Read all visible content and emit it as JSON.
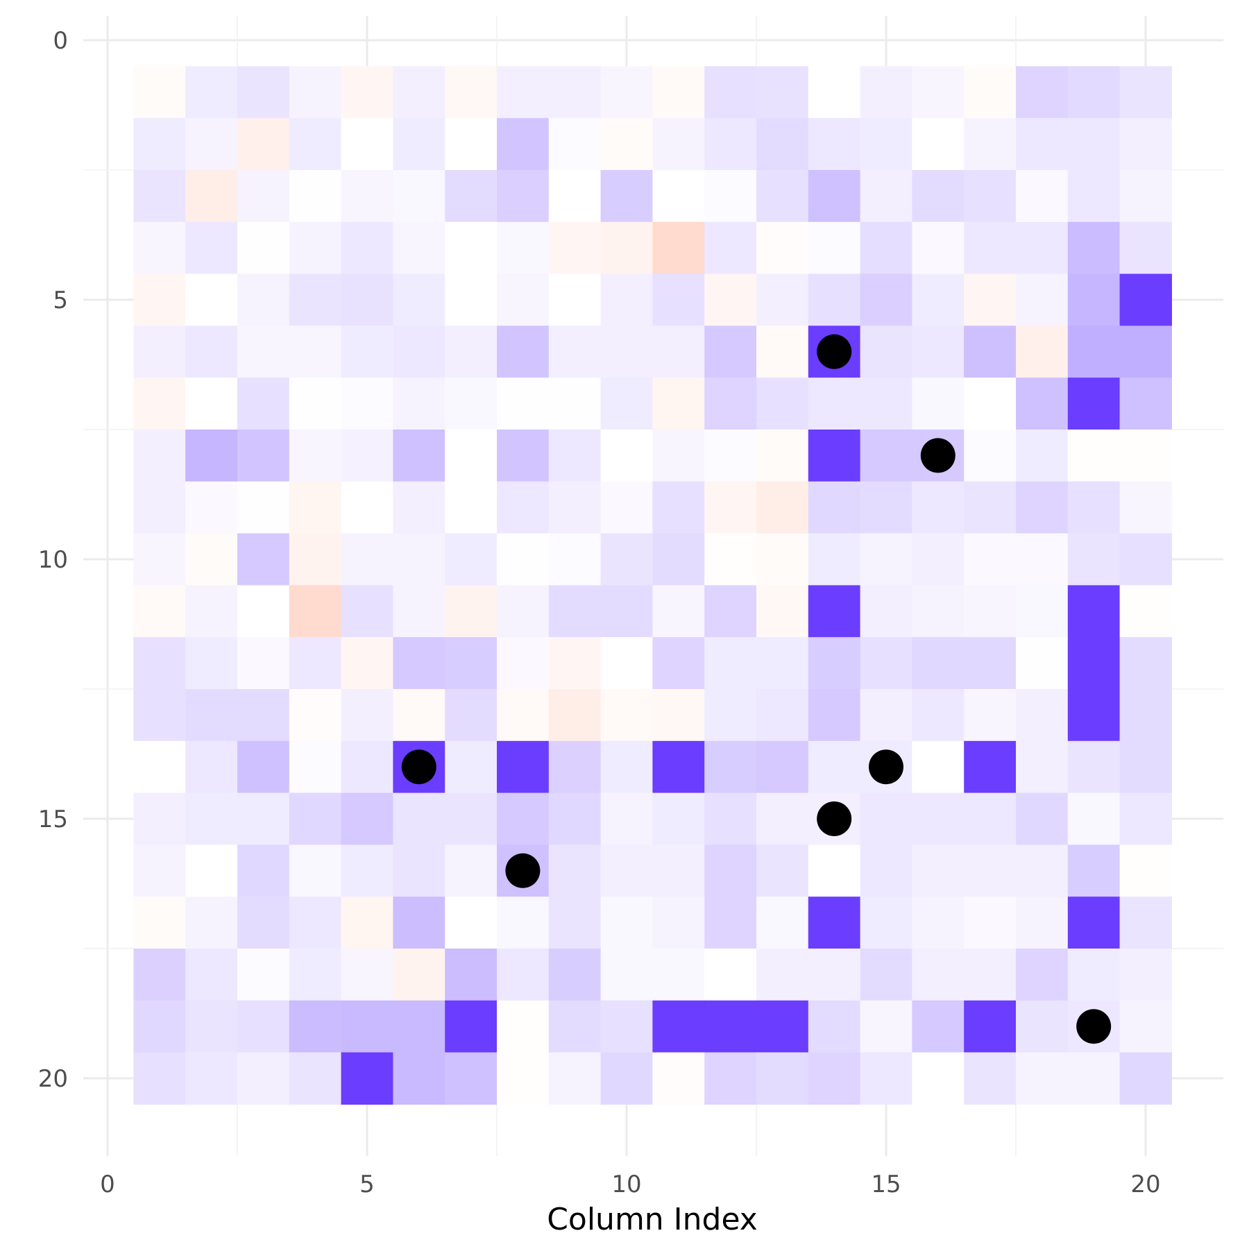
{
  "chart_data": {
    "type": "heatmap",
    "title": "",
    "xlabel": "Column Index",
    "ylabel": "",
    "xlim": [
      0,
      21.5
    ],
    "ylim": [
      21.5,
      0
    ],
    "y_reversed": true,
    "x_ticks": [
      0,
      5,
      10,
      15,
      20
    ],
    "y_ticks": [
      0,
      5,
      10,
      15,
      20
    ],
    "grid": true,
    "legend": "none",
    "colors": {
      "low": "#ff6a3d",
      "mid": "#ffffff",
      "high": "#6a3dff",
      "marker": "#000000",
      "grid": "#ebebeb",
      "tick_text": "#4d4d4d"
    },
    "value_scale": "diverging, -1 to 1",
    "rows": [
      1,
      2,
      3,
      4,
      5,
      6,
      7,
      8,
      9,
      10,
      11,
      12,
      13,
      14,
      15,
      16,
      17,
      18,
      19,
      20
    ],
    "columns": [
      1,
      2,
      3,
      4,
      5,
      6,
      7,
      8,
      9,
      10,
      11,
      12,
      13,
      14,
      15,
      16,
      17,
      18,
      19,
      20
    ],
    "values": [
      [
        -0.03,
        0.1,
        0.14,
        0.06,
        -0.06,
        0.08,
        -0.05,
        0.08,
        0.08,
        0.05,
        -0.04,
        0.16,
        0.15,
        0.0,
        0.08,
        0.05,
        -0.03,
        0.22,
        0.19,
        0.14
      ],
      [
        0.1,
        0.06,
        -0.1,
        0.1,
        0.0,
        0.1,
        0.0,
        0.3,
        0.02,
        -0.03,
        0.06,
        0.12,
        0.18,
        0.12,
        0.1,
        0.0,
        0.06,
        0.12,
        0.12,
        0.08
      ],
      [
        0.14,
        -0.12,
        0.06,
        0.01,
        0.05,
        0.04,
        0.18,
        0.25,
        0.0,
        0.26,
        0.0,
        0.02,
        0.16,
        0.32,
        0.08,
        0.18,
        0.16,
        0.03,
        0.12,
        0.06
      ],
      [
        0.05,
        0.12,
        0.01,
        0.06,
        0.12,
        0.05,
        0.0,
        0.04,
        -0.06,
        -0.08,
        -0.25,
        0.12,
        -0.02,
        0.02,
        0.17,
        0.03,
        0.12,
        0.12,
        0.35,
        0.14
      ],
      [
        -0.06,
        0.0,
        0.06,
        0.14,
        0.15,
        0.1,
        0.0,
        0.05,
        0.0,
        0.08,
        0.16,
        -0.06,
        0.08,
        0.16,
        0.25,
        0.1,
        -0.06,
        0.06,
        0.38,
        1.0
      ],
      [
        0.08,
        0.12,
        0.05,
        0.05,
        0.1,
        0.12,
        0.08,
        0.3,
        0.08,
        0.08,
        0.08,
        0.28,
        -0.04,
        1.0,
        0.14,
        0.12,
        0.33,
        -0.1,
        0.42,
        0.42
      ],
      [
        -0.06,
        0.0,
        0.16,
        0.01,
        0.02,
        0.06,
        0.04,
        0.01,
        0.01,
        0.1,
        -0.07,
        0.22,
        0.16,
        0.12,
        0.12,
        0.04,
        0.0,
        0.32,
        1.0,
        0.32
      ],
      [
        0.08,
        0.38,
        0.3,
        0.05,
        0.07,
        0.32,
        0.0,
        0.3,
        0.12,
        0.0,
        0.05,
        0.02,
        -0.03,
        1.0,
        0.28,
        0.28,
        0.02,
        0.1,
        -0.01,
        -0.01
      ],
      [
        0.08,
        0.03,
        0.01,
        -0.07,
        0.0,
        0.08,
        0.0,
        0.12,
        0.08,
        0.03,
        0.16,
        -0.06,
        -0.12,
        0.2,
        0.18,
        0.12,
        0.14,
        0.22,
        0.16,
        0.05
      ],
      [
        0.05,
        -0.03,
        0.28,
        -0.08,
        0.06,
        0.06,
        0.1,
        0.01,
        0.02,
        0.14,
        0.18,
        -0.01,
        -0.03,
        0.1,
        0.06,
        0.08,
        0.03,
        0.03,
        0.14,
        0.16
      ],
      [
        -0.04,
        0.06,
        0.0,
        -0.25,
        0.16,
        0.06,
        -0.08,
        0.06,
        0.18,
        0.18,
        0.05,
        0.22,
        -0.05,
        1.0,
        0.08,
        0.06,
        0.05,
        0.04,
        1.0,
        -0.01
      ],
      [
        0.16,
        0.1,
        0.03,
        0.12,
        -0.06,
        0.28,
        0.26,
        0.03,
        -0.06,
        0.0,
        0.22,
        0.1,
        0.1,
        0.26,
        0.16,
        0.2,
        0.2,
        0.01,
        1.0,
        0.18
      ],
      [
        0.16,
        0.18,
        0.18,
        -0.02,
        0.08,
        -0.04,
        0.18,
        -0.04,
        -0.12,
        -0.04,
        -0.05,
        0.1,
        0.12,
        0.28,
        0.08,
        0.12,
        0.05,
        0.08,
        1.0,
        0.18
      ],
      [
        0.0,
        0.12,
        0.32,
        0.02,
        0.12,
        1.0,
        0.1,
        1.0,
        0.24,
        0.1,
        1.0,
        0.26,
        0.28,
        0.1,
        0.1,
        0.0,
        1.0,
        0.08,
        0.14,
        0.18
      ],
      [
        0.08,
        0.1,
        0.1,
        0.2,
        0.28,
        0.14,
        0.14,
        0.28,
        0.2,
        0.06,
        0.1,
        0.16,
        0.08,
        0.08,
        0.12,
        0.12,
        0.12,
        0.2,
        0.04,
        0.12
      ],
      [
        0.06,
        0.0,
        0.2,
        0.04,
        0.1,
        0.14,
        0.06,
        0.32,
        0.14,
        0.08,
        0.08,
        0.22,
        0.14,
        0.0,
        0.12,
        0.08,
        0.08,
        0.08,
        0.26,
        -0.01
      ],
      [
        -0.03,
        0.06,
        0.18,
        0.12,
        -0.07,
        0.34,
        0.0,
        0.04,
        0.14,
        0.04,
        0.06,
        0.22,
        0.04,
        1.0,
        0.1,
        0.06,
        0.03,
        0.06,
        1.0,
        0.14
      ],
      [
        0.24,
        0.12,
        0.02,
        0.1,
        0.05,
        -0.08,
        0.34,
        0.12,
        0.26,
        0.04,
        0.04,
        0.0,
        0.08,
        0.08,
        0.18,
        0.08,
        0.08,
        0.22,
        0.1,
        0.08
      ],
      [
        0.2,
        0.14,
        0.16,
        0.35,
        0.36,
        0.36,
        1.0,
        -0.01,
        0.18,
        0.16,
        1.0,
        1.0,
        1.0,
        0.18,
        0.05,
        0.28,
        1.0,
        0.14,
        0.12,
        0.06
      ],
      [
        0.16,
        0.12,
        0.08,
        0.14,
        1.0,
        0.36,
        0.32,
        -0.01,
        0.06,
        0.2,
        -0.02,
        0.22,
        0.18,
        0.22,
        0.12,
        0.0,
        0.14,
        0.06,
        0.06,
        0.2
      ]
    ],
    "points": [
      {
        "x": 14,
        "y": 6
      },
      {
        "x": 16,
        "y": 8
      },
      {
        "x": 6,
        "y": 14
      },
      {
        "x": 15,
        "y": 14
      },
      {
        "x": 14,
        "y": 15
      },
      {
        "x": 8,
        "y": 16
      },
      {
        "x": 19,
        "y": 19
      }
    ]
  }
}
